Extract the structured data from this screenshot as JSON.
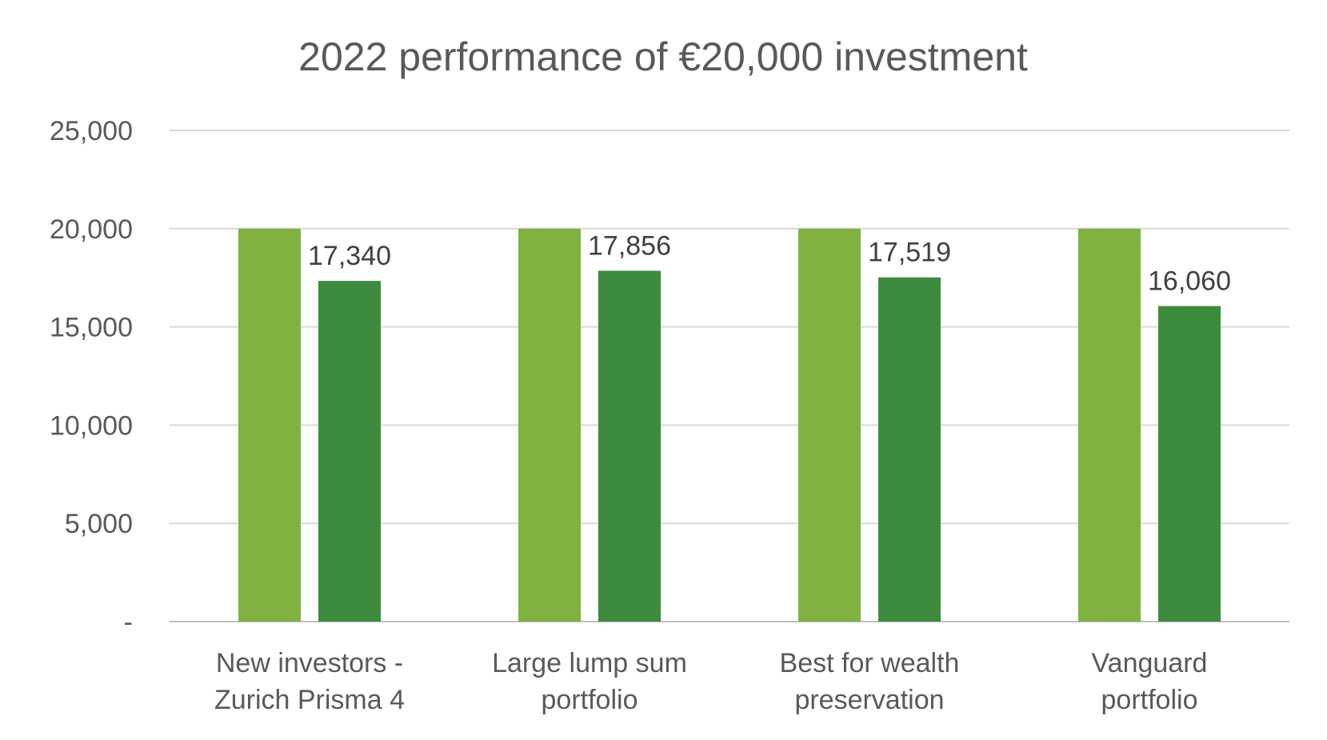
{
  "chart_data": {
    "type": "bar",
    "title": "2022 performance of €20,000 investment",
    "categories": [
      "New investors - Zurich Prisma 4",
      "Large lump sum portfolio",
      "Best for wealth preservation",
      "Vanguard portfolio"
    ],
    "category_lines": [
      [
        "New investors -",
        "Zurich Prisma 4"
      ],
      [
        "Large lump sum",
        "portfolio"
      ],
      [
        "Best for wealth",
        "preservation"
      ],
      [
        "Vanguard",
        "portfolio"
      ]
    ],
    "series": [
      {
        "values": [
          20000,
          20000,
          20000,
          20000
        ],
        "color": "#7fb241",
        "show_labels": false
      },
      {
        "values": [
          17340,
          17856,
          17519,
          16060
        ],
        "color": "#3d8b3d",
        "show_labels": true,
        "labels": [
          "17,340",
          "17,856",
          "17,519",
          "16,060"
        ]
      }
    ],
    "ylim": [
      0,
      25000
    ],
    "yticks": [
      {
        "value": 0,
        "label": "-"
      },
      {
        "value": 5000,
        "label": "5,000"
      },
      {
        "value": 10000,
        "label": "10,000"
      },
      {
        "value": 15000,
        "label": "15,000"
      },
      {
        "value": 20000,
        "label": "20,000"
      },
      {
        "value": 25000,
        "label": "25,000"
      }
    ],
    "grid": true,
    "legend": "none"
  }
}
